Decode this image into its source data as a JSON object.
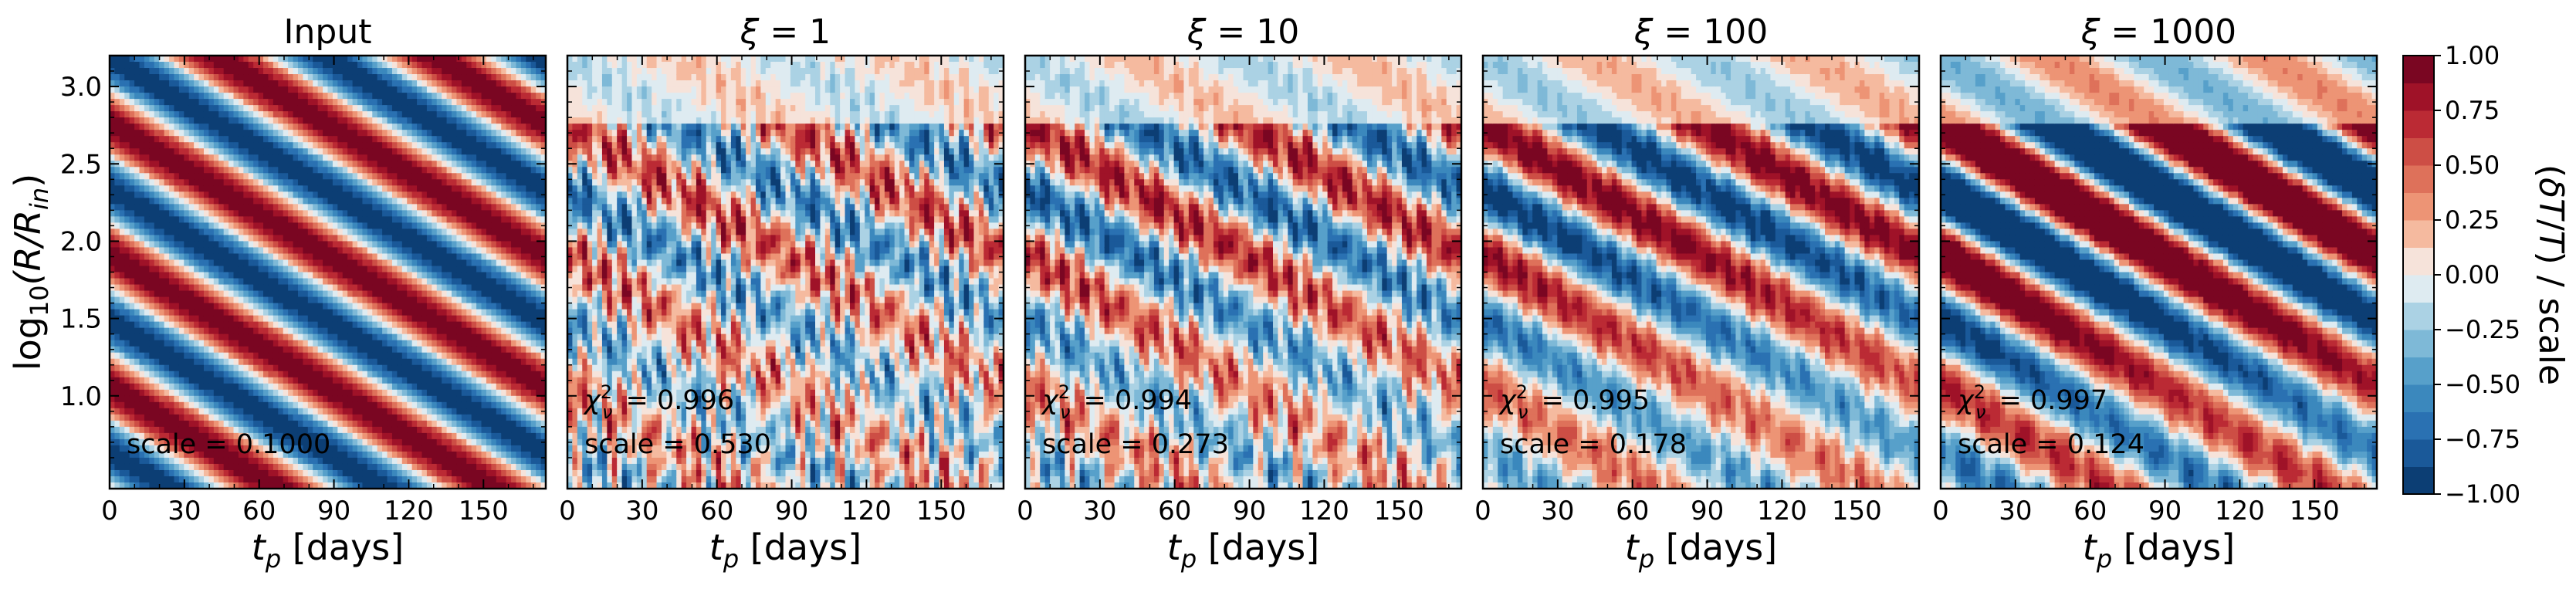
{
  "colors": {
    "colormap": "RdBu_r",
    "low": "#053061",
    "mid": "#f7f7f7",
    "high": "#67001f"
  },
  "chart_data": {
    "type": "heatmap",
    "ylabel": "log10(R/Rin)",
    "ylabel_parts": {
      "prefix": "log",
      "sub": "10",
      "body": "(R/R",
      "sub2": "in",
      "close": ")"
    },
    "xlabel": "t_p [days]",
    "xlabel_parts": {
      "italic": "t",
      "sub": "p",
      "rest": " [days]"
    },
    "x_range": [
      0,
      175
    ],
    "y_range": [
      0.4,
      3.2
    ],
    "x_ticks": [
      0,
      30,
      60,
      90,
      120,
      150
    ],
    "y_ticks": [
      1.0,
      1.5,
      2.0,
      2.5,
      3.0
    ],
    "y_tick_labels": [
      "1.0",
      "1.5",
      "2.0",
      "2.5",
      "3.0"
    ],
    "x_tick_labels": [
      "0",
      "30",
      "60",
      "90",
      "120",
      "150"
    ],
    "panels": [
      {
        "title": "Input",
        "xi": null,
        "scale_text": "scale = 0.1000",
        "chi2": null
      },
      {
        "title": "ξ = 1",
        "xi": 1,
        "scale_text": "scale = 0.530",
        "chi2": "= 0.996",
        "chi2_value": 0.996,
        "scale_value": 0.53
      },
      {
        "title": "ξ = 10",
        "xi": 10,
        "scale_text": "scale = 0.273",
        "chi2": "= 0.994",
        "chi2_value": 0.994,
        "scale_value": 0.273
      },
      {
        "title": "ξ = 100",
        "xi": 100,
        "scale_text": "scale = 0.178",
        "chi2": "= 0.995",
        "chi2_value": 0.995,
        "scale_value": 0.178
      },
      {
        "title": "ξ = 1000",
        "xi": 1000,
        "scale_text": "scale = 0.124",
        "chi2": "= 0.997",
        "chi2_value": 0.997,
        "scale_value": 0.124
      }
    ],
    "colorbar": {
      "label": "(δT/T) / scale",
      "range": [
        -1.0,
        1.0
      ],
      "levels": 16,
      "ticks": [
        1.0,
        0.75,
        0.5,
        0.25,
        0.0,
        -0.25,
        -0.5,
        -0.75,
        -1.0
      ],
      "tick_labels": [
        "1.00",
        "0.75",
        "0.50",
        "0.25",
        "0.00",
        "−0.25",
        "−0.50",
        "−0.75",
        "−1.00"
      ]
    },
    "grid": false
  }
}
